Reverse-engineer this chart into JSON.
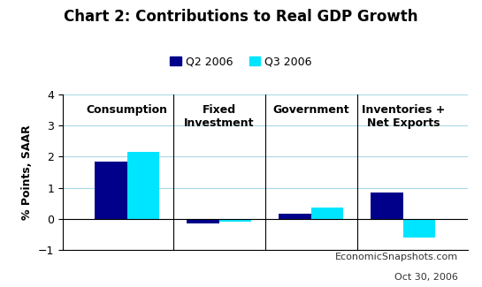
{
  "title": "Chart 2: Contributions to Real GDP Growth",
  "ylabel": "% Points, SAAR",
  "categories": [
    "Consumption",
    "Fixed\nInvestment",
    "Government",
    "Inventories +\nNet Exports"
  ],
  "q2_values": [
    1.85,
    -0.15,
    0.15,
    0.85
  ],
  "q3_values": [
    2.15,
    -0.1,
    0.35,
    -0.6
  ],
  "q2_color": "#00008B",
  "q3_color": "#00E5FF",
  "ylim": [
    -1.0,
    4.0
  ],
  "yticks": [
    -1,
    0,
    1,
    2,
    3,
    4
  ],
  "legend_labels": [
    "Q2 2006",
    "Q3 2006"
  ],
  "watermark_line1": "EconomicSnapshots.com",
  "watermark_line2": "Oct 30, 2006",
  "bg_color": "#FFFFFF",
  "bar_width": 0.35,
  "grid_color": "#ADD8E6",
  "title_fontsize": 12,
  "axis_label_fontsize": 9,
  "tick_fontsize": 9,
  "legend_fontsize": 9,
  "cat_label_fontsize": 9
}
